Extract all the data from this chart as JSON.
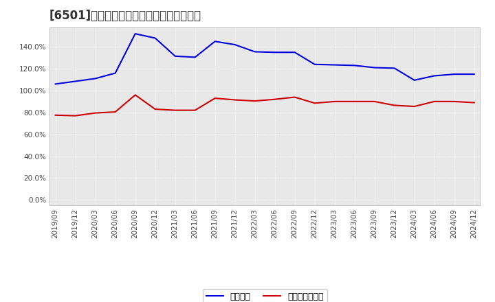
{
  "title": "[6501]　固定比率、固定長期適合率の推移",
  "x_labels": [
    "2019/09",
    "2019/12",
    "2020/03",
    "2020/06",
    "2020/09",
    "2020/12",
    "2021/03",
    "2021/06",
    "2021/09",
    "2021/12",
    "2022/03",
    "2022/06",
    "2022/09",
    "2022/12",
    "2023/03",
    "2023/06",
    "2023/09",
    "2023/12",
    "2024/03",
    "2024/06",
    "2024/09",
    "2024/12"
  ],
  "fixed_ratio": [
    106.0,
    108.5,
    111.0,
    116.0,
    152.0,
    148.0,
    131.5,
    130.5,
    145.0,
    142.0,
    135.5,
    135.0,
    135.0,
    124.0,
    123.5,
    123.0,
    121.0,
    120.5,
    109.5,
    113.5,
    115.0,
    115.0
  ],
  "fixed_long_ratio": [
    77.5,
    77.0,
    79.5,
    80.5,
    96.0,
    83.0,
    82.0,
    82.0,
    93.0,
    91.5,
    90.5,
    92.0,
    94.0,
    88.5,
    90.0,
    90.0,
    90.0,
    86.5,
    85.5,
    90.0,
    90.0,
    89.0
  ],
  "line1_color": "#0000dd",
  "line2_color": "#cc0000",
  "legend1": "固定比率",
  "legend2": "固定長期適合率",
  "yticks": [
    0.0,
    20.0,
    40.0,
    60.0,
    80.0,
    100.0,
    120.0,
    140.0
  ],
  "ylim": [
    -5,
    158
  ],
  "bg_color": "#ffffff",
  "plot_bg_color": "#e8e8e8",
  "grid_color": "#ffffff",
  "title_fontsize": 12,
  "tick_fontsize": 7.5,
  "legend_fontsize": 9
}
